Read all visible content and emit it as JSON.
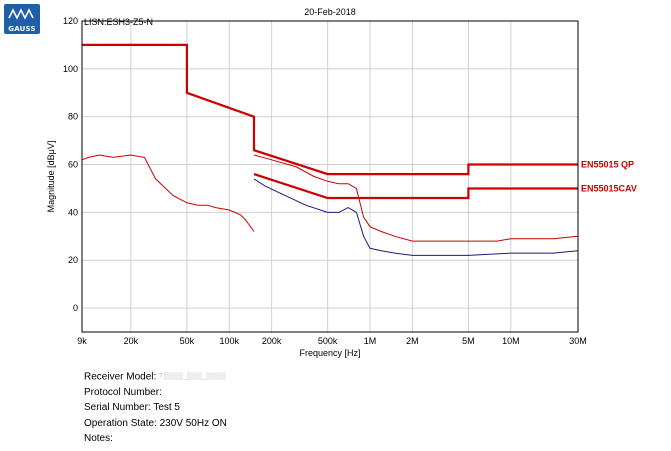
{
  "logo": {
    "text": "GAUSS"
  },
  "chart_data": {
    "type": "line",
    "title": "20-Feb-2018",
    "subtitle": "LISN:ESH3-Z5-N",
    "xlabel": "Frequency [Hz]",
    "ylabel": "Magnitude [dBμV]",
    "xscale": "log",
    "xlim": [
      9000,
      30000000
    ],
    "ylim": [
      -10,
      120
    ],
    "grid": true,
    "yticks": [
      0,
      20,
      40,
      60,
      80,
      100,
      120
    ],
    "xticks": [
      {
        "value": 9000,
        "label": "9k"
      },
      {
        "value": 20000,
        "label": "20k"
      },
      {
        "value": 50000,
        "label": "50k"
      },
      {
        "value": 100000,
        "label": "100k"
      },
      {
        "value": 200000,
        "label": "200k"
      },
      {
        "value": 500000,
        "label": "500k"
      },
      {
        "value": 1000000,
        "label": "1M"
      },
      {
        "value": 2000000,
        "label": "2M"
      },
      {
        "value": 5000000,
        "label": "5M"
      },
      {
        "value": 10000000,
        "label": "10M"
      },
      {
        "value": 30000000,
        "label": "30M"
      }
    ],
    "limit_lines": [
      {
        "name": "EN55015 QP",
        "color": "#cc0000",
        "points": [
          [
            9000,
            110
          ],
          [
            50000,
            110
          ],
          [
            50000,
            90
          ],
          [
            150000,
            80
          ],
          [
            150000,
            66
          ],
          [
            500000,
            56
          ],
          [
            5000000,
            56
          ],
          [
            5000000,
            60
          ],
          [
            30000000,
            60
          ]
        ]
      },
      {
        "name": "EN55015CAV",
        "color": "#cc0000",
        "points": [
          [
            150000,
            56
          ],
          [
            500000,
            46
          ],
          [
            5000000,
            46
          ],
          [
            5000000,
            50
          ],
          [
            30000000,
            50
          ]
        ]
      }
    ],
    "series": [
      {
        "color": "#cc0000",
        "points": [
          [
            9000,
            62
          ],
          [
            10000,
            63
          ],
          [
            12000,
            64
          ],
          [
            15000,
            63
          ],
          [
            20000,
            64
          ],
          [
            25000,
            63
          ],
          [
            30000,
            54
          ],
          [
            40000,
            47
          ],
          [
            50000,
            44
          ],
          [
            60000,
            43
          ],
          [
            70000,
            43
          ],
          [
            80000,
            42
          ],
          [
            100000,
            41
          ],
          [
            120000,
            39
          ],
          [
            130000,
            37
          ],
          [
            150000,
            32
          ]
        ]
      },
      {
        "color": "#cc0000",
        "points": [
          [
            150000,
            64
          ],
          [
            200000,
            62
          ],
          [
            300000,
            59
          ],
          [
            400000,
            55
          ],
          [
            500000,
            53
          ],
          [
            600000,
            52
          ],
          [
            700000,
            52
          ],
          [
            800000,
            50
          ],
          [
            900000,
            38
          ],
          [
            1000000,
            34
          ],
          [
            1200000,
            32
          ],
          [
            1500000,
            30
          ],
          [
            2000000,
            28
          ],
          [
            5000000,
            28
          ],
          [
            8000000,
            28
          ],
          [
            10000000,
            29
          ],
          [
            20000000,
            29
          ],
          [
            30000000,
            30
          ]
        ]
      },
      {
        "color": "#1a1a80",
        "points": [
          [
            150000,
            54
          ],
          [
            180000,
            51
          ],
          [
            250000,
            47
          ],
          [
            350000,
            43
          ],
          [
            500000,
            40
          ],
          [
            600000,
            40
          ],
          [
            700000,
            42
          ],
          [
            800000,
            40
          ],
          [
            900000,
            30
          ],
          [
            1000000,
            25
          ],
          [
            1200000,
            24
          ],
          [
            1500000,
            23
          ],
          [
            2000000,
            22
          ],
          [
            5000000,
            22
          ],
          [
            10000000,
            23
          ],
          [
            20000000,
            23
          ],
          [
            30000000,
            24
          ]
        ]
      }
    ]
  },
  "info": {
    "receiver_model_label": "Receiver Model:",
    "receiver_model_value": "T▒▒▒▒_▒▒▒_▒▒▒▒",
    "protocol_number_label": "Protocol Number:",
    "protocol_number_value": "",
    "serial_number_label": "Serial Number:",
    "serial_number_value": "Test 5",
    "operation_state_label": "Operation State:",
    "operation_state_value": "230V 50Hz ON",
    "notes_label": "Notes:",
    "notes_value": ""
  }
}
